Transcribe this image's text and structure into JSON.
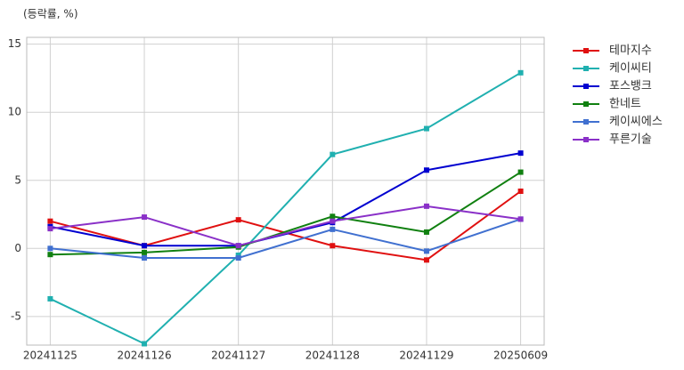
{
  "chart_data": {
    "type": "line",
    "ylabel": "(등락률, %)",
    "categories": [
      "20241125",
      "20241126",
      "20241127",
      "20241128",
      "20241129",
      "20250609"
    ],
    "series": [
      {
        "name": "테마지수",
        "color": "#e01010",
        "values": [
          2.0,
          0.2,
          2.1,
          0.2,
          -0.85,
          4.2
        ]
      },
      {
        "name": "케이씨티",
        "color": "#20b0b0",
        "values": [
          -3.7,
          -7.0,
          -0.5,
          6.9,
          8.8,
          12.9
        ]
      },
      {
        "name": "포스뱅크",
        "color": "#0000d0",
        "values": [
          1.6,
          0.2,
          0.2,
          1.9,
          5.75,
          7.0
        ]
      },
      {
        "name": "한네트",
        "color": "#108010",
        "values": [
          -0.45,
          -0.3,
          0.1,
          2.35,
          1.2,
          5.6
        ]
      },
      {
        "name": "케이씨에스",
        "color": "#4070d0",
        "values": [
          0,
          -0.7,
          -0.7,
          1.4,
          -0.2,
          2.15
        ]
      },
      {
        "name": "푸른기술",
        "color": "#8a30c8",
        "values": [
          1.45,
          2.3,
          0.2,
          2.0,
          3.1,
          2.15
        ]
      }
    ],
    "ylim": [
      -7.1,
      15.5
    ],
    "yticks": [
      -5,
      0,
      5,
      10,
      15
    ],
    "grid": true,
    "legend": "outside-right"
  }
}
